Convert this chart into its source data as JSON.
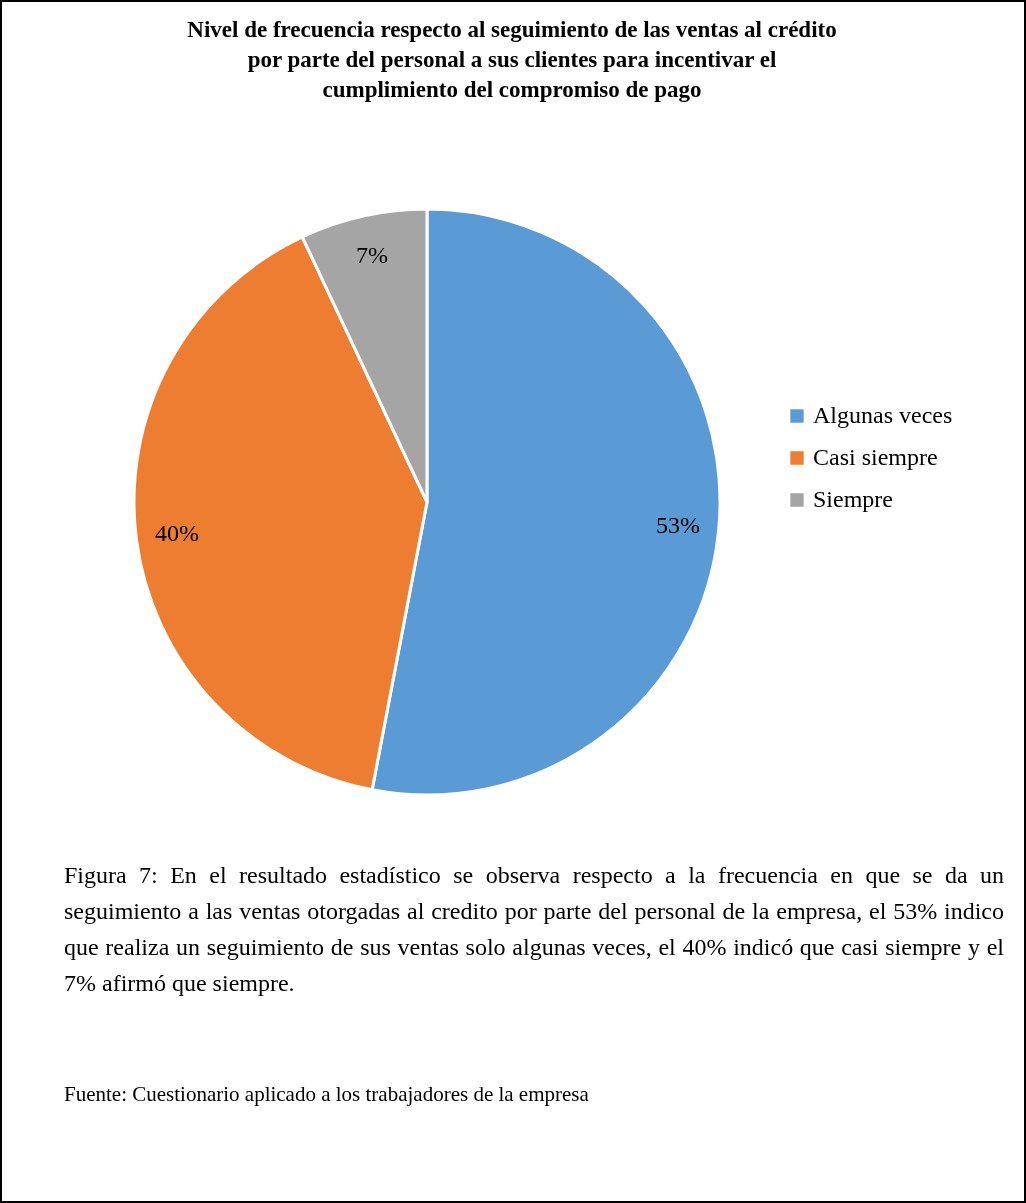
{
  "chart_data": {
    "type": "pie",
    "title": "Nivel de frecuencia respecto al seguimiento de las ventas al crédito por parte del personal a sus clientes para incentivar el cumplimiento del compromiso de pago",
    "categories": [
      "Algunas veces",
      "Casi siempre",
      "Siempre"
    ],
    "values": [
      53,
      40,
      7
    ],
    "value_labels": [
      "53%",
      "40%",
      "7%"
    ],
    "colors": [
      "#5b9bd5",
      "#ed7d31",
      "#a5a5a5"
    ],
    "legend": "right",
    "annotations": [
      "Figura 7: En el resultado estadístico se observa respecto a la frecuencia en que se da un seguimiento a las ventas otorgadas al credito por parte del personal de la empresa, el 53% indico que realiza un seguimiento de sus ventas solo algunas veces, el 40% indicó que casi siempre y el 7% afirmó que siempre.",
      "Fuente: Cuestionario aplicado a los trabajadores de la empresa"
    ]
  }
}
